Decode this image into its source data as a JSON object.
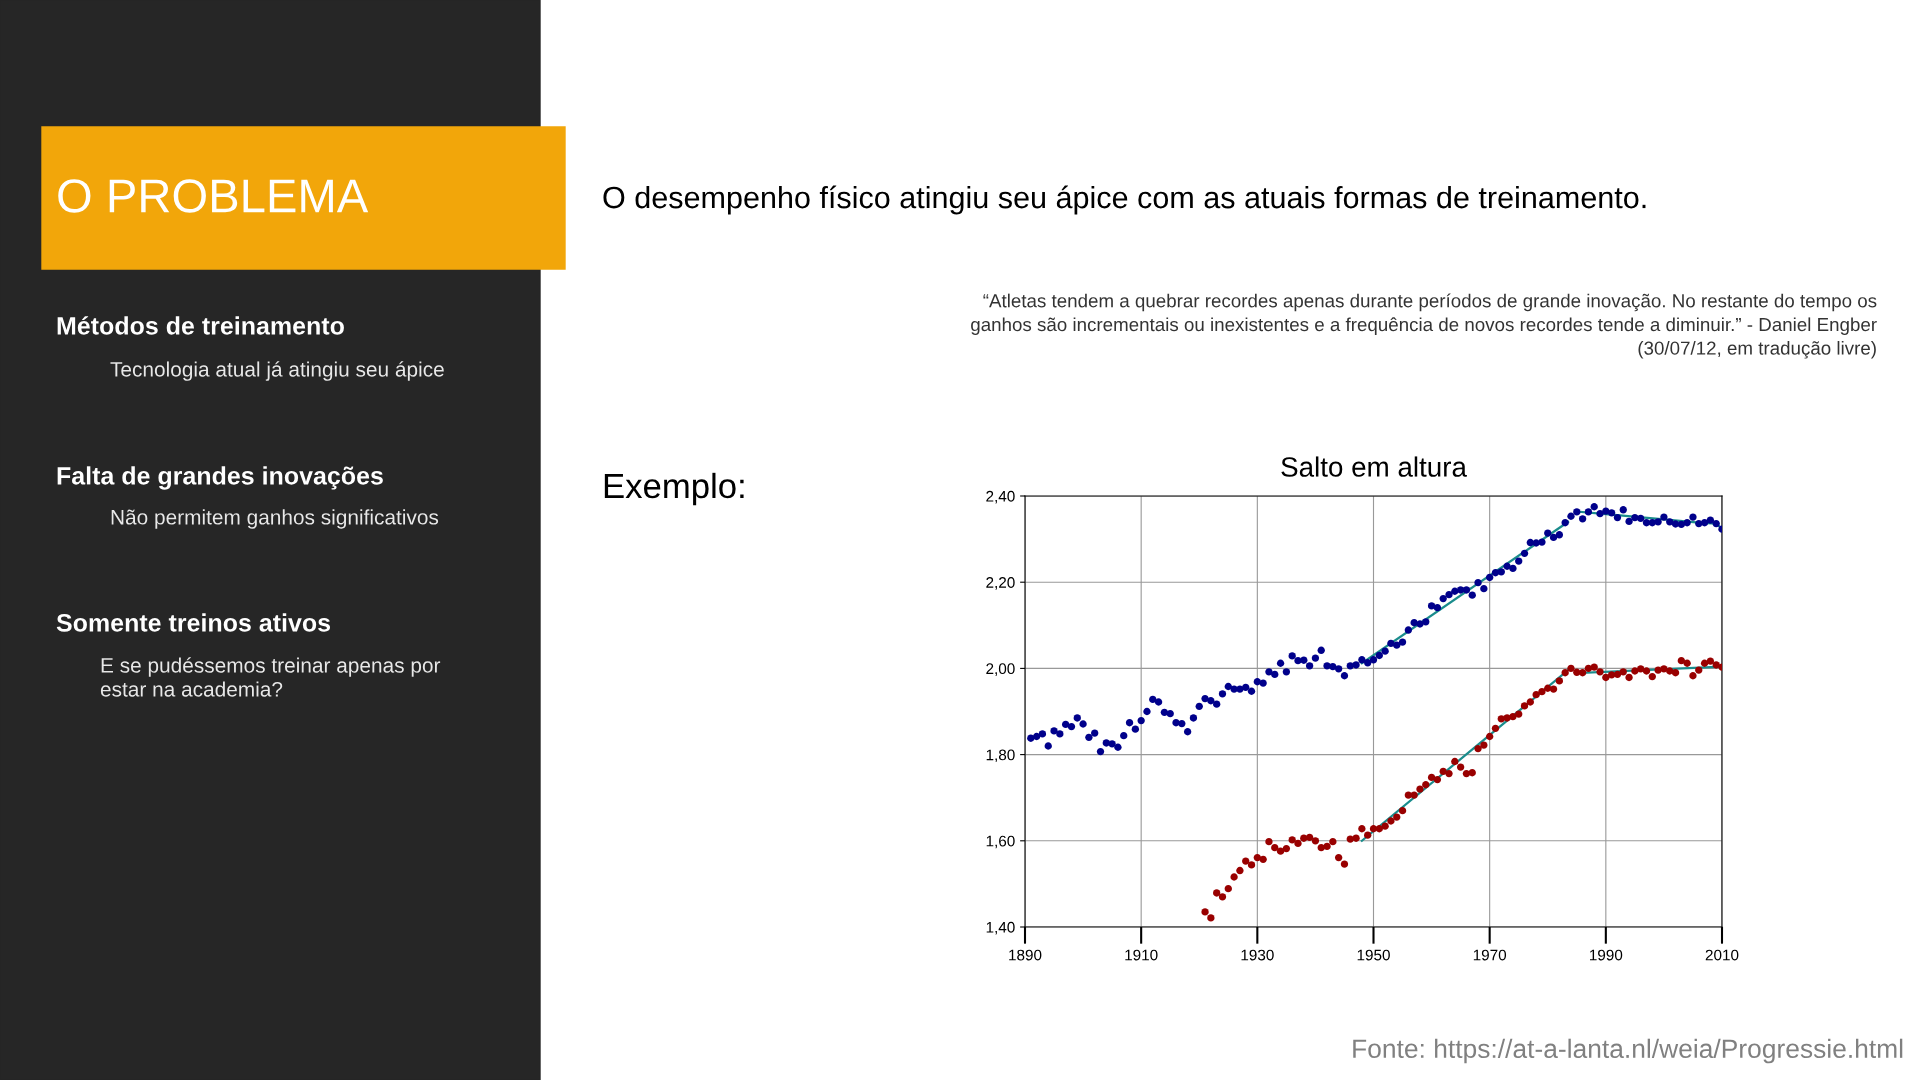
{
  "chart_data": {
    "type": "scatter",
    "title": "Salto em altura",
    "xlim": [
      1890,
      2010
    ],
    "xticks": [
      1890,
      1910,
      1930,
      1950,
      1970,
      1990,
      2010
    ],
    "ylim": [
      1.4,
      2.4
    ],
    "yticks": [
      {
        "value": 1.4,
        "label": "1,40"
      },
      {
        "value": 1.6,
        "label": "1,60"
      },
      {
        "value": 1.8,
        "label": "1,80"
      },
      {
        "value": 2.0,
        "label": "2,00"
      },
      {
        "value": 2.2,
        "label": "2,20"
      },
      {
        "value": 2.4,
        "label": "2,40"
      }
    ],
    "grid": true,
    "marker": "circle",
    "legend": false,
    "series": [
      {
        "color": "#00008b",
        "x": [
          1891,
          1892,
          1893,
          1894,
          1895,
          1896,
          1897,
          1898,
          1899,
          1900,
          1901,
          1902,
          1903,
          1904,
          1905,
          1906,
          1907,
          1908,
          1909,
          1910,
          1911,
          1912,
          1913,
          1914,
          1915,
          1916,
          1917,
          1918,
          1919,
          1920,
          1921,
          1922,
          1923,
          1924,
          1925,
          1926,
          1927,
          1928,
          1929,
          1930,
          1931,
          1932,
          1933,
          1934,
          1935,
          1936,
          1937,
          1938,
          1939,
          1940,
          1941,
          1942,
          1943,
          1944,
          1945,
          1946,
          1947,
          1948,
          1949,
          1950,
          1951,
          1952,
          1953,
          1954,
          1955,
          1956,
          1957,
          1958,
          1959,
          1960,
          1961,
          1962,
          1963,
          1964,
          1965,
          1966,
          1967,
          1968,
          1969,
          1970,
          1971,
          1972,
          1973,
          1974,
          1975,
          1976,
          1977,
          1978,
          1979,
          1980,
          1981,
          1982,
          1983,
          1984,
          1985,
          1986,
          1987,
          1988,
          1989,
          1990,
          1991,
          1992,
          1993,
          1994,
          1995,
          1996,
          1997,
          1998,
          1999,
          2000,
          2001,
          2002,
          2003,
          2004,
          2005,
          2006,
          2007,
          2008,
          2009,
          2010
        ],
        "values": [
          1.838,
          1.842,
          1.848,
          1.82,
          1.855,
          1.848,
          1.87,
          1.865,
          1.885,
          1.871,
          1.84,
          1.85,
          1.807,
          1.827,
          1.825,
          1.817,
          1.844,
          1.874,
          1.859,
          1.879,
          1.9,
          1.928,
          1.922,
          1.898,
          1.895,
          1.874,
          1.872,
          1.853,
          1.885,
          1.912,
          1.93,
          1.925,
          1.917,
          1.941,
          1.958,
          1.952,
          1.952,
          1.956,
          1.947,
          1.969,
          1.966,
          1.992,
          1.986,
          2.012,
          1.992,
          2.029,
          2.018,
          2.019,
          2.006,
          2.024,
          2.042,
          2.006,
          2.004,
          1.999,
          1.983,
          2.006,
          2.008,
          2.02,
          2.013,
          2.02,
          2.03,
          2.04,
          2.058,
          2.054,
          2.061,
          2.089,
          2.106,
          2.103,
          2.108,
          2.145,
          2.141,
          2.162,
          2.171,
          2.179,
          2.182,
          2.182,
          2.17,
          2.199,
          2.185,
          2.211,
          2.222,
          2.224,
          2.237,
          2.232,
          2.249,
          2.267,
          2.292,
          2.291,
          2.293,
          2.314,
          2.304,
          2.31,
          2.338,
          2.353,
          2.363,
          2.347,
          2.363,
          2.375,
          2.359,
          2.365,
          2.361,
          2.35,
          2.368,
          2.341,
          2.35,
          2.348,
          2.338,
          2.338,
          2.34,
          2.351,
          2.34,
          2.335,
          2.334,
          2.338,
          2.351,
          2.336,
          2.338,
          2.344,
          2.336,
          2.323
        ]
      },
      {
        "color": "#990000",
        "x": [
          1921,
          1922,
          1923,
          1924,
          1925,
          1926,
          1927,
          1928,
          1929,
          1930,
          1931,
          1932,
          1933,
          1934,
          1935,
          1936,
          1937,
          1938,
          1939,
          1940,
          1941,
          1942,
          1943,
          1944,
          1945,
          1946,
          1947,
          1948,
          1949,
          1950,
          1951,
          1952,
          1953,
          1954,
          1955,
          1956,
          1957,
          1958,
          1959,
          1960,
          1961,
          1962,
          1963,
          1964,
          1965,
          1966,
          1967,
          1968,
          1969,
          1970,
          1971,
          1972,
          1973,
          1974,
          1975,
          1976,
          1977,
          1978,
          1979,
          1980,
          1981,
          1982,
          1983,
          1984,
          1985,
          1986,
          1987,
          1988,
          1989,
          1990,
          1991,
          1992,
          1993,
          1994,
          1995,
          1996,
          1997,
          1998,
          1999,
          2000,
          2001,
          2002,
          2003,
          2004,
          2005,
          2006,
          2007,
          2008,
          2009,
          2010
        ],
        "values": [
          1.435,
          1.421,
          1.479,
          1.47,
          1.489,
          1.516,
          1.531,
          1.553,
          1.544,
          1.561,
          1.557,
          1.598,
          1.584,
          1.576,
          1.582,
          1.602,
          1.594,
          1.606,
          1.608,
          1.6,
          1.584,
          1.587,
          1.598,
          1.561,
          1.546,
          1.604,
          1.606,
          1.628,
          1.613,
          1.628,
          1.628,
          1.634,
          1.646,
          1.655,
          1.67,
          1.706,
          1.706,
          1.72,
          1.73,
          1.747,
          1.742,
          1.761,
          1.756,
          1.784,
          1.771,
          1.756,
          1.758,
          1.814,
          1.822,
          1.842,
          1.861,
          1.883,
          1.885,
          1.888,
          1.894,
          1.913,
          1.922,
          1.939,
          1.946,
          1.954,
          1.952,
          1.971,
          1.99,
          2.0,
          1.991,
          1.99,
          2.0,
          2.003,
          1.992,
          1.979,
          1.985,
          1.986,
          1.992,
          1.979,
          1.994,
          1.999,
          1.994,
          1.981,
          1.996,
          1.999,
          1.994,
          1.99,
          2.018,
          2.012,
          1.983,
          1.996,
          2.012,
          2.017,
          2.008,
          2.003
        ]
      },
      {
        "type": "line",
        "color": "#1a8c8c",
        "marker": "none",
        "x": [
          1948,
          1983.5
        ],
        "values": [
          2.012,
          2.34
        ]
      },
      {
        "type": "line",
        "color": "#1a8c8c",
        "marker": "none",
        "x": [
          1985,
          1991,
          2000,
          2006,
          2009,
          2010
        ],
        "values": [
          2.364,
          2.357,
          2.346,
          2.338,
          2.336,
          2.324
        ]
      },
      {
        "type": "line",
        "color": "#1a8c8c",
        "marker": "none",
        "x": [
          1948,
          1983.5
        ],
        "values": [
          1.6,
          1.996
        ]
      },
      {
        "type": "line",
        "color": "#1a8c8c",
        "marker": "none",
        "x": [
          1985,
          2010
        ],
        "values": [
          1.989,
          2.004
        ]
      }
    ],
    "annotations": [
      "O PROBLEMA",
      "Métodos de treinamento",
      "Tecnologia atual já atingiu seu ápice",
      "Falta de grandes inovações",
      "Não permitem ganhos significativos",
      "Somente treinos ativos",
      "E se pudéssemos treinar apenas por\nestar na academia?",
      "O desempenho físico atingiu seu ápice com as atuais formas de treinamento.",
      "“Atletas tendem a quebrar recordes apenas durante períodos de grande inovação. No restante do tempo os\nganhos são incrementais ou inexistentes e a frequência de novos recordes tende a diminuir.” - Daniel Engber\n(30/07/12, em tradução livre)",
      "Exemplo:",
      "Fonte: https://at-a-lanta.nl/weia/Progressie.html"
    ]
  }
}
